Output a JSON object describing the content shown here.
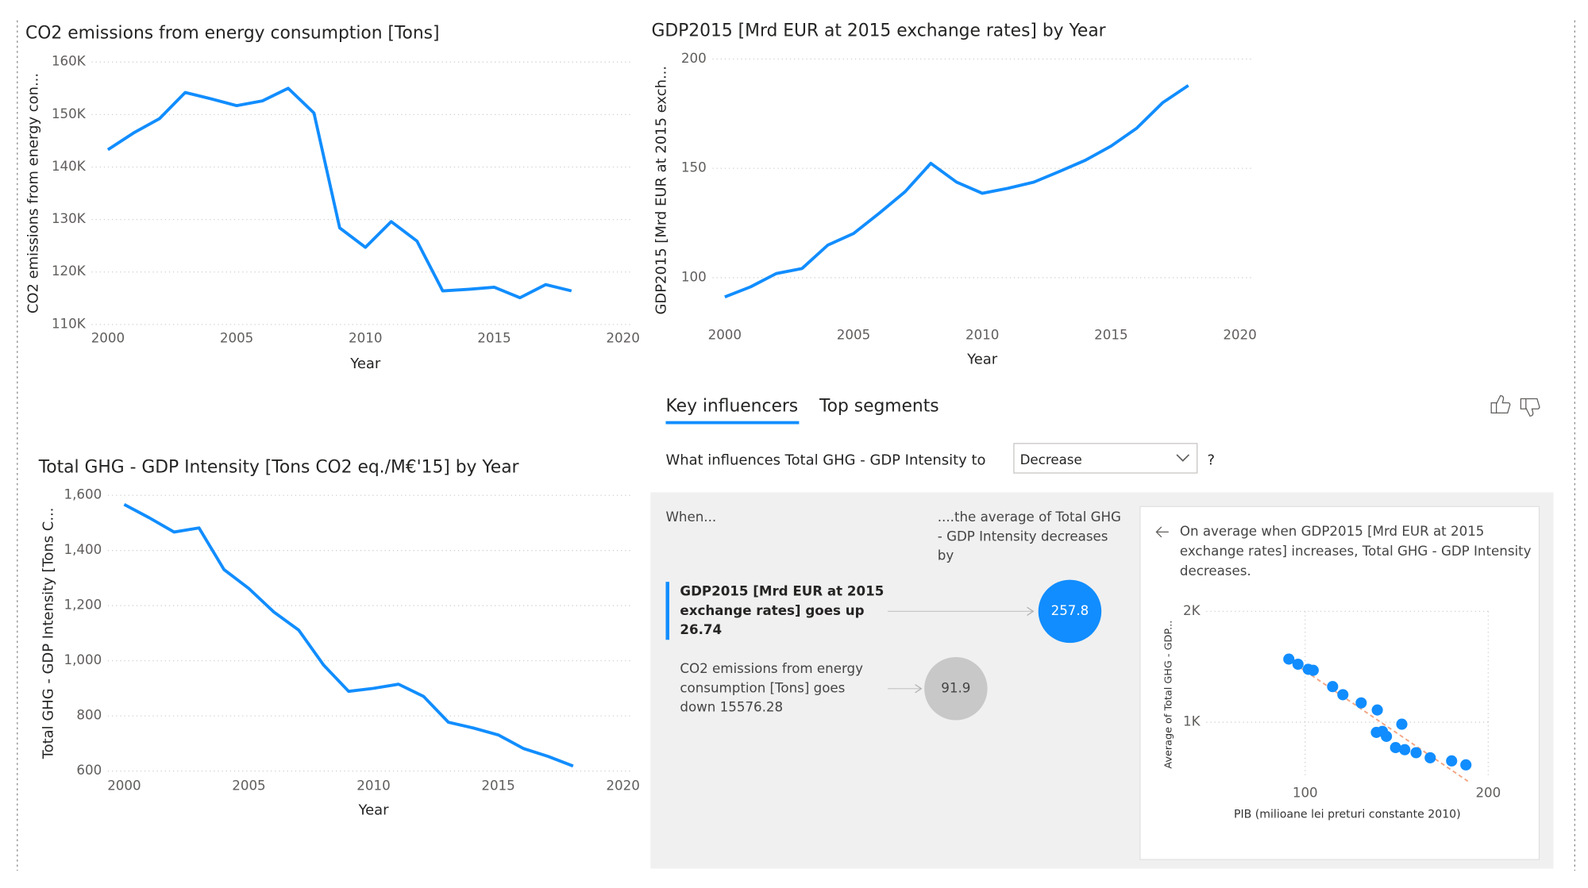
{
  "chart_data": [
    {
      "type": "line",
      "title": "CO2 emissions from energy consumption [Tons]",
      "x_label": "Year",
      "y_label": "CO2 emissions from energy con...",
      "x": [
        2000,
        2001,
        2002,
        2003,
        2004,
        2005,
        2006,
        2007,
        2008,
        2009,
        2010,
        2011,
        2012,
        2013,
        2014,
        2015,
        2016,
        2017,
        2018
      ],
      "values": [
        143300,
        146500,
        149200,
        154200,
        153000,
        151700,
        152600,
        155000,
        150300,
        128400,
        124700,
        129600,
        125900,
        116400,
        116700,
        117100,
        115100,
        117600,
        116400
      ],
      "color": "#118DFF",
      "xlim": [
        2000,
        2020
      ],
      "xticks": [
        2000,
        2005,
        2010,
        2015,
        2020
      ],
      "ylim": [
        110000,
        160000
      ],
      "yticks": [
        {
          "value": 110000,
          "label": "110K"
        },
        {
          "value": 120000,
          "label": "120K"
        },
        {
          "value": 130000,
          "label": "130K"
        },
        {
          "value": 140000,
          "label": "140K"
        },
        {
          "value": 150000,
          "label": "150K"
        },
        {
          "value": 160000,
          "label": "160K"
        }
      ],
      "grid": true
    },
    {
      "type": "line",
      "title": "GDP2015 [Mrd EUR at 2015 exchange rates] by Year",
      "x_label": "Year",
      "y_label": "GDP2015 [Mrd EUR at 2015 exch...",
      "x": [
        2000,
        2001,
        2002,
        2003,
        2004,
        2005,
        2006,
        2007,
        2008,
        2009,
        2010,
        2011,
        2012,
        2013,
        2014,
        2015,
        2016,
        2017,
        2018
      ],
      "values": [
        91.2,
        95.8,
        101.9,
        104.2,
        114.9,
        120.2,
        129.5,
        139.3,
        152.3,
        143.7,
        138.6,
        140.9,
        143.7,
        148.6,
        153.7,
        160.2,
        168.4,
        180,
        187.9
      ],
      "color": "#118DFF",
      "xlim": [
        2000,
        2020
      ],
      "xticks": [
        2000,
        2005,
        2010,
        2015,
        2020
      ],
      "ylim": [
        80,
        200
      ],
      "yticks": [
        100,
        150,
        200
      ],
      "grid": true
    },
    {
      "type": "line",
      "title": "Total GHG - GDP Intensity [Tons CO2 eq./M€'15] by Year",
      "x_label": "Year",
      "y_label": "Total GHG - GDP Intensity [Tons C...",
      "x": [
        2000,
        2001,
        2002,
        2003,
        2004,
        2005,
        2006,
        2007,
        2008,
        2009,
        2010,
        2011,
        2012,
        2013,
        2014,
        2015,
        2016,
        2017,
        2018
      ],
      "values": [
        1567,
        1519,
        1467,
        1482,
        1331,
        1262,
        1177,
        1111,
        984,
        889,
        900,
        915,
        871,
        777,
        756,
        731,
        682,
        653,
        618
      ],
      "color": "#118DFF",
      "xlim": [
        2000,
        2020
      ],
      "xticks": [
        2000,
        2005,
        2010,
        2015,
        2020
      ],
      "ylim": [
        600,
        1600
      ],
      "yticks": [
        600,
        800,
        {
          "value": 1000,
          "label": "1,000"
        },
        {
          "value": 1200,
          "label": "1,200"
        },
        {
          "value": 1400,
          "label": "1,400"
        },
        {
          "value": 1600,
          "label": "1,600"
        }
      ],
      "grid": true
    },
    {
      "type": "scatter",
      "x_label": "PIB (milioane lei preturi constante 2010)",
      "y_label": "Average of Total GHG - GDP...",
      "x": [
        91.1,
        96.1,
        101.7,
        104.4,
        115,
        120.6,
        130.6,
        139.4,
        152.8,
        138.9,
        142.2,
        144.4,
        149.4,
        154.4,
        160.6,
        168.3,
        180,
        187.8
      ],
      "values": [
        1569,
        1523,
        1477,
        1468,
        1321,
        1248,
        1174,
        1110,
        982,
        908,
        917,
        872,
        771,
        752,
        725,
        679,
        651,
        615
      ],
      "color": "#118DFF",
      "xlim": [
        46,
        200
      ],
      "xticks": [
        100,
        200
      ],
      "ylim": [
        500,
        2000
      ],
      "yticks": [
        {
          "value": 1000,
          "label": "1K"
        },
        {
          "value": 2000,
          "label": "2K"
        }
      ],
      "grid": true
    }
  ],
  "key_influencers": {
    "tabs": [
      "Key influencers",
      "Top segments"
    ],
    "question": "What influences Total GHG - GDP Intensity to",
    "selection": "Decrease",
    "question_mark": "?",
    "when": "When...",
    "result_lines": [
      "....the average of Total GHG",
      "- GDP Intensity decreases",
      "by"
    ],
    "influencers": [
      {
        "lines": [
          "GDP2015 [Mrd EUR at 2015",
          "exchange rates] goes up",
          "26.74"
        ],
        "value": 257.8,
        "color": "#118DFF"
      },
      {
        "lines": [
          "CO2 emissions from energy",
          "consumption [Tons] goes",
          "down 15576.28"
        ],
        "value": 91.9,
        "color": "#c8c8c8"
      }
    ],
    "detail_lines": [
      "On average when GDP2015 [Mrd EUR at 2015",
      "exchange rates] increases, Total GHG - GDP Intensity",
      "decreases."
    ]
  }
}
